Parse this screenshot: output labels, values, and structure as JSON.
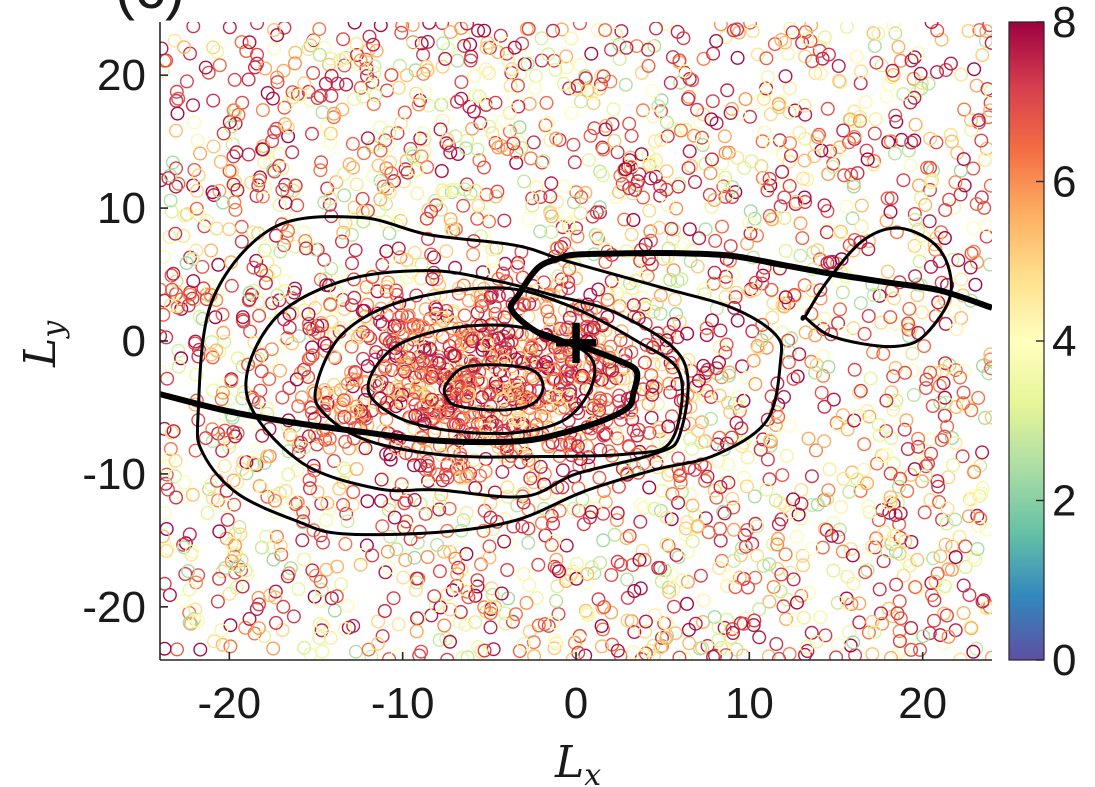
{
  "chart_data": {
    "type": "scatter",
    "panel_label": "(c)",
    "xlabel": {
      "main": "L",
      "sub": "x"
    },
    "ylabel": {
      "main": "L",
      "sub": "y"
    },
    "xlim": [
      -24,
      24
    ],
    "ylim": [
      -24,
      24
    ],
    "xticks": [
      -20,
      -10,
      0,
      10,
      20
    ],
    "yticks": [
      -20,
      -10,
      0,
      10,
      20
    ],
    "colorbar": {
      "range": [
        0,
        8
      ],
      "ticks": [
        0,
        2,
        4,
        6,
        8
      ],
      "colormap": [
        "#5e4fa2",
        "#3288bd",
        "#66c2a5",
        "#abdda4",
        "#e6f598",
        "#ffffbf",
        "#fee08b",
        "#fdae61",
        "#f46d43",
        "#d53e4f",
        "#9e0142"
      ]
    },
    "scatter_marker": "open-circle",
    "marker": {
      "symbol": "+",
      "x": 0,
      "y": 0
    },
    "contours": [
      {
        "name": "inner",
        "points": [
          [
            -7.5,
            -3.3
          ],
          [
            -6.5,
            -2.0
          ],
          [
            -4.5,
            -1.8
          ],
          [
            -2.5,
            -2.2
          ],
          [
            -1.9,
            -3.5
          ],
          [
            -2.6,
            -4.8
          ],
          [
            -4.5,
            -5.2
          ],
          [
            -6.8,
            -4.9
          ],
          [
            -7.5,
            -4.2
          ]
        ]
      },
      {
        "name": "second",
        "points": [
          [
            -12,
            -3.5
          ],
          [
            -10.5,
            -0.5
          ],
          [
            -7,
            1.0
          ],
          [
            -3,
            1.0
          ],
          [
            0.5,
            -0.8
          ],
          [
            1.0,
            -3.0
          ],
          [
            -0.5,
            -5.8
          ],
          [
            -3.5,
            -6.9
          ],
          [
            -7.5,
            -6.7
          ],
          [
            -10.5,
            -5.6
          ]
        ]
      },
      {
        "name": "third",
        "points": [
          [
            -15,
            -3.5
          ],
          [
            -13.5,
            0.5
          ],
          [
            -10,
            3.0
          ],
          [
            -4.5,
            4.0
          ],
          [
            -0.5,
            2.7
          ],
          [
            3.5,
            0.0
          ],
          [
            6.0,
            -2.5
          ],
          [
            5.5,
            -7.5
          ],
          [
            3.0,
            -8.5
          ],
          [
            -2.5,
            -8.7
          ],
          [
            -7.5,
            -8.6
          ],
          [
            -12,
            -7.5
          ],
          [
            -14.5,
            -5.5
          ]
        ]
      },
      {
        "name": "fourth",
        "points": [
          [
            -19,
            -4.0
          ],
          [
            -17.5,
            1.5
          ],
          [
            -13.5,
            4.5
          ],
          [
            -8.5,
            5.3
          ],
          [
            -4.5,
            4.5
          ],
          [
            -1.5,
            3.5
          ],
          [
            2.5,
            2.0
          ],
          [
            6.2,
            -1.5
          ],
          [
            6.0,
            -7.0
          ],
          [
            4.5,
            -8.5
          ],
          [
            0,
            -10.0
          ],
          [
            -3,
            -11.7
          ],
          [
            -8,
            -11.2
          ],
          [
            -11.5,
            -11.1
          ],
          [
            -16,
            -9.0
          ]
        ]
      },
      {
        "name": "outer",
        "points": [
          [
            -21.8,
            -5.5
          ],
          [
            -21,
            3.0
          ],
          [
            -17.5,
            8.5
          ],
          [
            -12.5,
            9.3
          ],
          [
            -8.5,
            8.0
          ],
          [
            -3.5,
            7.2
          ],
          [
            -0.5,
            6.0
          ],
          [
            5.0,
            4.0
          ],
          [
            9.0,
            2.5
          ],
          [
            11.5,
            0.5
          ],
          [
            11.8,
            -1.5
          ],
          [
            11,
            -6.0
          ],
          [
            8.0,
            -8.6
          ],
          [
            4.5,
            -9.7
          ],
          [
            0.5,
            -11.3
          ],
          [
            -3.5,
            -13.5
          ],
          [
            -8,
            -14.4
          ],
          [
            -13.5,
            -14.5
          ],
          [
            -16,
            -13.6
          ],
          [
            -19.5,
            -11.5
          ],
          [
            -21.5,
            -8.5
          ]
        ]
      },
      {
        "name": "right-loop",
        "points": [
          [
            13.2,
            1.8
          ],
          [
            14.5,
            4.5
          ],
          [
            16.5,
            7.5
          ],
          [
            18.5,
            8.5
          ],
          [
            20.5,
            7.5
          ],
          [
            21.5,
            5.5
          ],
          [
            21.5,
            3.0
          ],
          [
            20.0,
            0.3
          ],
          [
            18.5,
            -0.4
          ],
          [
            16.5,
            -0.2
          ],
          [
            14.5,
            0.5
          ],
          [
            13.2,
            1.8
          ]
        ]
      }
    ],
    "thick_lines": [
      {
        "name": "left-branch",
        "points": [
          [
            -24,
            -4.0
          ],
          [
            -20,
            -5.3
          ],
          [
            -16,
            -6.2
          ],
          [
            -12,
            -6.9
          ],
          [
            -9,
            -7.4
          ],
          [
            -6,
            -7.6
          ],
          [
            -3,
            -7.5
          ],
          [
            -1,
            -7.0
          ],
          [
            1.5,
            -6.0
          ],
          [
            3.0,
            -5.0
          ],
          [
            3.3,
            -4.0
          ],
          [
            3.5,
            -2.3
          ],
          [
            2.5,
            -1.5
          ],
          [
            0.5,
            -0.5
          ],
          [
            -2,
            0.5
          ],
          [
            -3.7,
            2.3
          ],
          [
            -3.3,
            3.5
          ],
          [
            -2.2,
            5.5
          ],
          [
            -1,
            6.2
          ],
          [
            0,
            6.5
          ],
          [
            3,
            6.6
          ],
          [
            6,
            6.6
          ],
          [
            9,
            6.4
          ],
          [
            12,
            5.7
          ],
          [
            15,
            5.0
          ],
          [
            18,
            4.4
          ],
          [
            21,
            3.8
          ],
          [
            24,
            2.5
          ]
        ]
      }
    ]
  }
}
